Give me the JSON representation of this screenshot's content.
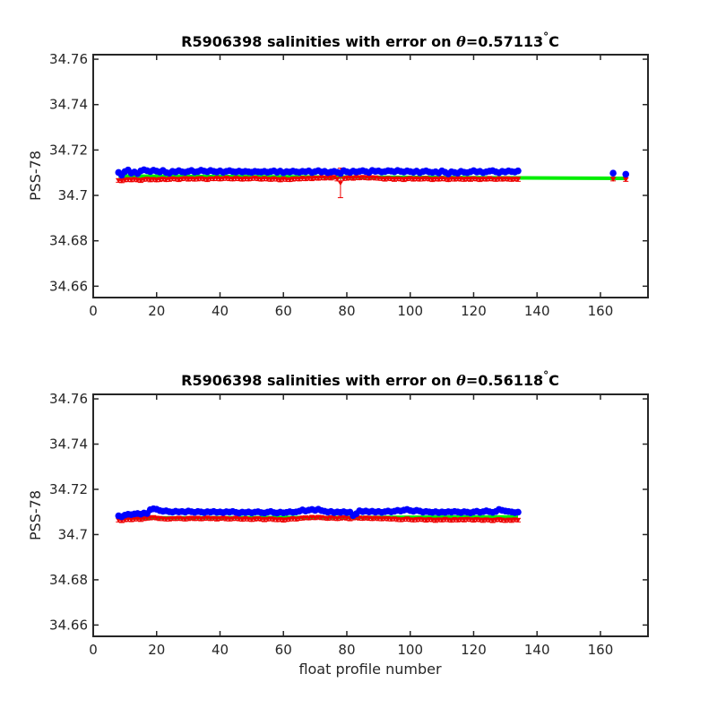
{
  "chart_data": [
    {
      "type": "scatter",
      "title_main": "R5906398 salinities with error on ",
      "title_theta": "θ",
      "title_value": "=0.57113",
      "title_degree": "°",
      "title_unit": "C",
      "xlabel": "",
      "ylabel": "PSS-78",
      "xlim": [
        0,
        175
      ],
      "ylim": [
        34.655,
        34.762
      ],
      "xticks": [
        0,
        20,
        40,
        60,
        80,
        100,
        120,
        140,
        160
      ],
      "yticks": [
        34.66,
        34.68,
        34.7,
        34.72,
        34.74,
        34.76
      ],
      "ytick_labels": [
        "34.66",
        "34.68",
        "34.7",
        "34.72",
        "34.74",
        "34.76"
      ],
      "grid": false,
      "colors": {
        "float": "#0000ff",
        "fit": "#00ee00",
        "error": "#ee0000"
      },
      "profiles_start": 8,
      "profiles_end": 134,
      "float_salinity": [
        34.7101,
        34.7089,
        34.7105,
        34.7112,
        34.7098,
        34.7103,
        34.7096,
        34.7108,
        34.7113,
        34.7109,
        34.7105,
        34.7111,
        34.7107,
        34.7103,
        34.711,
        34.7101,
        34.7098,
        34.7106,
        34.7103,
        34.7109,
        34.7104,
        34.7102,
        34.7106,
        34.711,
        34.7103,
        34.7105,
        34.7111,
        34.7107,
        34.7104,
        34.711,
        34.7106,
        34.7103,
        34.7108,
        34.7102,
        34.7106,
        34.7109,
        34.7105,
        34.7103,
        34.7107,
        34.7103,
        34.7106,
        34.7104,
        34.7102,
        34.7106,
        34.7104,
        34.7103,
        34.7106,
        34.7102,
        34.7105,
        34.7108,
        34.7102,
        34.7107,
        34.71,
        34.7105,
        34.7103,
        34.7107,
        34.7104,
        34.7102,
        34.7106,
        34.7104,
        34.7108,
        34.7101,
        34.7105,
        34.7109,
        34.7103,
        34.7106,
        34.71,
        34.7103,
        34.7106,
        34.7102,
        34.7097,
        34.7109,
        34.7104,
        34.7101,
        34.7107,
        34.7103,
        34.7106,
        34.7109,
        34.7105,
        34.7101,
        34.711,
        34.7106,
        34.7108,
        34.7103,
        34.7105,
        34.7109,
        34.7107,
        34.7104,
        34.711,
        34.7106,
        34.7103,
        34.7108,
        34.7105,
        34.7102,
        34.7107,
        34.71,
        34.7105,
        34.7108,
        34.7103,
        34.7101,
        34.7104,
        34.7099,
        34.7108,
        34.7102,
        34.7095,
        34.7104,
        34.7101,
        34.7098,
        34.7106,
        34.7102,
        34.71,
        34.7104,
        34.7109,
        34.7103,
        34.7106,
        34.71,
        34.7104,
        34.7107,
        34.7109,
        34.7104,
        34.71,
        34.7106,
        34.7103,
        34.7108,
        34.7105,
        34.7103,
        34.7108
      ],
      "mapped_salinity": [
        34.7066,
        34.7065,
        34.7068,
        34.707,
        34.7069,
        34.7071,
        34.7068,
        34.7066,
        34.707,
        34.7072,
        34.7069,
        34.7071,
        34.7068,
        34.707,
        34.7073,
        34.7069,
        34.7071,
        34.7074,
        34.7072,
        34.707,
        34.7073,
        34.7075,
        34.7072,
        34.7074,
        34.7071,
        34.7073,
        34.7075,
        34.7072,
        34.707,
        34.7074,
        34.7073,
        34.7075,
        34.7072,
        34.7074,
        34.7076,
        34.7073,
        34.7072,
        34.7075,
        34.7073,
        34.7071,
        34.7074,
        34.7072,
        34.7074,
        34.7076,
        34.7073,
        34.7071,
        34.7074,
        34.7072,
        34.707,
        34.7073,
        34.7071,
        34.7068,
        34.7072,
        34.707,
        34.7069,
        34.7072,
        34.7074,
        34.7072,
        34.7075,
        34.7073,
        34.7076,
        34.7074,
        34.7077,
        34.7075,
        34.7078,
        34.7076,
        34.7079,
        34.7077,
        34.708,
        34.7072,
        34.7055,
        34.7074,
        34.7076,
        34.7078,
        34.7075,
        34.7079,
        34.7077,
        34.708,
        34.7078,
        34.7076,
        34.7079,
        34.7077,
        34.7075,
        34.7074,
        34.7072,
        34.7075,
        34.7073,
        34.7071,
        34.7074,
        34.7072,
        34.707,
        34.7073,
        34.7075,
        34.7072,
        34.7074,
        34.7071,
        34.7073,
        34.7075,
        34.7072,
        34.707,
        34.7073,
        34.7071,
        34.7074,
        34.7072,
        34.7069,
        34.7073,
        34.7071,
        34.7074,
        34.7072,
        34.707,
        34.7073,
        34.7071,
        34.7074,
        34.7072,
        34.707,
        34.7073,
        34.7071,
        34.7074,
        34.7072,
        34.707,
        34.7073,
        34.7071,
        34.7074,
        34.7072,
        34.707,
        34.7073,
        34.7071
      ],
      "mapped_error": [
        0.0008,
        0.0009,
        0.0008,
        0.0008,
        0.0009,
        0.0008,
        0.0008,
        0.0009,
        0.0008,
        0.0008,
        0.0009,
        0.0008,
        0.0008,
        0.0009,
        0.0008,
        0.0008,
        0.0009,
        0.0008,
        0.0008,
        0.0009,
        0.0008,
        0.0008,
        0.0009,
        0.0008,
        0.0008,
        0.0009,
        0.0008,
        0.0008,
        0.0009,
        0.0008,
        0.0008,
        0.0009,
        0.0008,
        0.0008,
        0.0009,
        0.0008,
        0.0008,
        0.0009,
        0.0008,
        0.0008,
        0.0009,
        0.0008,
        0.0008,
        0.0009,
        0.0008,
        0.0008,
        0.0009,
        0.0008,
        0.0008,
        0.0009,
        0.0008,
        0.0008,
        0.0009,
        0.0008,
        0.0008,
        0.0009,
        0.0008,
        0.0008,
        0.0009,
        0.0008,
        0.0008,
        0.0009,
        0.0008,
        0.0008,
        0.0009,
        0.0008,
        0.0008,
        0.0009,
        0.0008,
        0.0008,
        0.0065,
        0.0008,
        0.0009,
        0.0008,
        0.0008,
        0.0009,
        0.0008,
        0.0008,
        0.0009,
        0.0008,
        0.0008,
        0.0009,
        0.0008,
        0.0008,
        0.0009,
        0.0008,
        0.0008,
        0.0009,
        0.0008,
        0.0008,
        0.0009,
        0.0008,
        0.0008,
        0.0009,
        0.0008,
        0.0008,
        0.0009,
        0.0008,
        0.0008,
        0.0009,
        0.0008,
        0.0008,
        0.0009,
        0.0008,
        0.0008,
        0.0009,
        0.0008,
        0.0008,
        0.0009,
        0.0008,
        0.0008,
        0.0009,
        0.0008,
        0.0008,
        0.0009,
        0.0008,
        0.0008,
        0.0009,
        0.0008,
        0.0008,
        0.0009,
        0.0008,
        0.0008,
        0.0009,
        0.0008,
        0.0008,
        0.0009
      ],
      "extra_profiles": [
        {
          "x": 164,
          "float": 34.7098,
          "mapped": 34.7072,
          "error": 0.0008
        },
        {
          "x": 168,
          "float": 34.7093,
          "mapped": 34.707,
          "error": 0.0008
        }
      ],
      "fit_line": {
        "x": [
          8,
          168
        ],
        "y": [
          34.7085,
          34.7075
        ]
      }
    },
    {
      "type": "scatter",
      "title_main": "R5906398 salinities with error on ",
      "title_theta": "θ",
      "title_value": "=0.56118",
      "title_degree": "°",
      "title_unit": "C",
      "xlabel": "float profile number",
      "ylabel": "PSS-78",
      "xlim": [
        0,
        175
      ],
      "ylim": [
        34.655,
        34.762
      ],
      "xticks": [
        0,
        20,
        40,
        60,
        80,
        100,
        120,
        140,
        160
      ],
      "yticks": [
        34.66,
        34.68,
        34.7,
        34.72,
        34.74,
        34.76
      ],
      "ytick_labels": [
        "34.66",
        "34.68",
        "34.7",
        "34.72",
        "34.74",
        "34.76"
      ],
      "grid": false,
      "colors": {
        "float": "#0000ff",
        "fit": "#00ee00",
        "error": "#ee0000"
      },
      "profiles_start": 8,
      "profiles_end": 134,
      "float_salinity": [
        34.7083,
        34.7079,
        34.7086,
        34.709,
        34.7088,
        34.7091,
        34.7093,
        34.709,
        34.7095,
        34.7093,
        34.711,
        34.7114,
        34.7112,
        34.7106,
        34.7103,
        34.7105,
        34.7101,
        34.7099,
        34.7103,
        34.71,
        34.7102,
        34.7099,
        34.7104,
        34.7101,
        34.7098,
        34.7102,
        34.71,
        34.7097,
        34.7101,
        34.7099,
        34.7102,
        34.7098,
        34.71,
        34.7097,
        34.7101,
        34.7099,
        34.7102,
        34.7098,
        34.7095,
        34.7099,
        34.7097,
        34.71,
        34.7096,
        34.7099,
        34.7101,
        34.7097,
        34.7095,
        34.7099,
        34.7102,
        34.7097,
        34.7095,
        34.7099,
        34.7096,
        34.7098,
        34.7101,
        34.7098,
        34.71,
        34.7103,
        34.7109,
        34.7104,
        34.7108,
        34.7111,
        34.7107,
        34.7112,
        34.7106,
        34.7103,
        34.7099,
        34.7102,
        34.7097,
        34.71,
        34.7098,
        34.7101,
        34.7097,
        34.7099,
        34.7084,
        34.7092,
        34.7105,
        34.7101,
        34.7104,
        34.71,
        34.7103,
        34.7099,
        34.7102,
        34.7098,
        34.7101,
        34.7104,
        34.71,
        34.7103,
        34.7107,
        34.7104,
        34.7108,
        34.7111,
        34.7106,
        34.7103,
        34.7107,
        34.7104,
        34.7099,
        34.7102,
        34.71,
        34.7098,
        34.7101,
        34.7097,
        34.71,
        34.7098,
        34.7101,
        34.7099,
        34.7102,
        34.71,
        34.7097,
        34.7101,
        34.7099,
        34.7096,
        34.71,
        34.7103,
        34.7098,
        34.7101,
        34.7105,
        34.7101,
        34.7098,
        34.7102,
        34.7111,
        34.7107,
        34.7104,
        34.7102,
        34.71,
        34.7097,
        34.7099
      ],
      "mapped_salinity": [
        34.7064,
        34.7062,
        34.7065,
        34.7067,
        34.7066,
        34.7068,
        34.7069,
        34.7067,
        34.707,
        34.7072,
        34.7074,
        34.7076,
        34.7073,
        34.7071,
        34.707,
        34.7068,
        34.7069,
        34.7071,
        34.707,
        34.7072,
        34.707,
        34.7068,
        34.7071,
        34.7073,
        34.707,
        34.7072,
        34.7069,
        34.7071,
        34.7073,
        34.707,
        34.7072,
        34.7069,
        34.7071,
        34.7073,
        34.707,
        34.7068,
        34.707,
        34.7072,
        34.7069,
        34.7067,
        34.707,
        34.7068,
        34.7066,
        34.7069,
        34.7071,
        34.7068,
        34.7066,
        34.7068,
        34.707,
        34.7067,
        34.7065,
        34.7067,
        34.7064,
        34.7066,
        34.7068,
        34.707,
        34.7068,
        34.7071,
        34.7073,
        34.7075,
        34.7073,
        34.7076,
        34.7074,
        34.7077,
        34.7075,
        34.7073,
        34.7071,
        34.7074,
        34.7072,
        34.707,
        34.7073,
        34.7075,
        34.7072,
        34.707,
        34.7073,
        34.7075,
        34.7073,
        34.7071,
        34.7074,
        34.7072,
        34.707,
        34.7073,
        34.7071,
        34.7069,
        34.7072,
        34.707,
        34.7068,
        34.707,
        34.7067,
        34.7065,
        34.7067,
        34.7069,
        34.7066,
        34.7064,
        34.7066,
        34.7068,
        34.7066,
        34.7064,
        34.7067,
        34.7065,
        34.7063,
        34.7066,
        34.7064,
        34.7067,
        34.7065,
        34.7063,
        34.7066,
        34.7064,
        34.7067,
        34.7065,
        34.7068,
        34.7066,
        34.7064,
        34.7067,
        34.7065,
        34.7063,
        34.7066,
        34.7064,
        34.7062,
        34.7065,
        34.7067,
        34.7064,
        34.7062,
        34.7065,
        34.7063,
        34.7066,
        34.7064
      ],
      "mapped_error": [
        0.0008,
        0.0009,
        0.0008,
        0.0008,
        0.0009,
        0.0008,
        0.0008,
        0.0009,
        0.0008,
        0.0008,
        0.0009,
        0.0008,
        0.0008,
        0.0009,
        0.0008,
        0.0008,
        0.0009,
        0.0008,
        0.0008,
        0.0009,
        0.0008,
        0.0008,
        0.0009,
        0.0008,
        0.0008,
        0.0009,
        0.0008,
        0.0008,
        0.0009,
        0.0008,
        0.0008,
        0.0009,
        0.0008,
        0.0008,
        0.0009,
        0.0008,
        0.0008,
        0.0009,
        0.0008,
        0.0008,
        0.0009,
        0.0008,
        0.0008,
        0.0009,
        0.0008,
        0.0008,
        0.0009,
        0.0008,
        0.0008,
        0.0009,
        0.0008,
        0.0008,
        0.0009,
        0.0008,
        0.0008,
        0.0009,
        0.0008,
        0.0008,
        0.0009,
        0.0008,
        0.0008,
        0.0009,
        0.0008,
        0.0008,
        0.0009,
        0.0008,
        0.0008,
        0.0009,
        0.0008,
        0.0008,
        0.0009,
        0.0008,
        0.0008,
        0.0009,
        0.0008,
        0.0008,
        0.0009,
        0.0008,
        0.0008,
        0.0009,
        0.0008,
        0.0008,
        0.0009,
        0.0008,
        0.0008,
        0.0009,
        0.0008,
        0.0008,
        0.0009,
        0.0008,
        0.0008,
        0.0009,
        0.0008,
        0.0008,
        0.0009,
        0.0008,
        0.0008,
        0.0009,
        0.0008,
        0.0008,
        0.0009,
        0.0008,
        0.0008,
        0.0009,
        0.0008,
        0.0008,
        0.0009,
        0.0008,
        0.0008,
        0.0009,
        0.0008,
        0.0008,
        0.0009,
        0.0008,
        0.0008,
        0.0009,
        0.0008,
        0.0008,
        0.0009,
        0.0008,
        0.0008,
        0.0009,
        0.0008,
        0.0008,
        0.0009,
        0.0008,
        0.0008
      ],
      "extra_profiles": [],
      "fit_line": {
        "x": [
          8,
          134
        ],
        "y": [
          34.7073,
          34.7078
        ]
      }
    }
  ]
}
